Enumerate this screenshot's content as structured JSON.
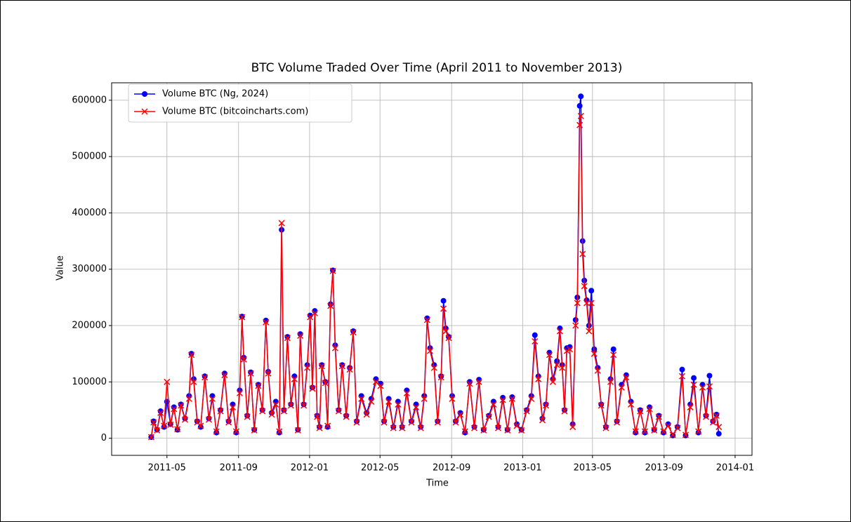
{
  "chart_data": {
    "type": "line",
    "title": "BTC Volume Traded Over Time (April 2011 to November 2013)",
    "x_label": "Time",
    "y_label": "Value",
    "x": [
      "2011-04-04",
      "2011-04-08",
      "2011-04-14",
      "2011-04-20",
      "2011-04-26",
      "2011-05-01",
      "2011-05-07",
      "2011-05-13",
      "2011-05-19",
      "2011-05-25",
      "2011-06-01",
      "2011-06-08",
      "2011-06-12",
      "2011-06-16",
      "2011-06-22",
      "2011-06-28",
      "2011-07-05",
      "2011-07-12",
      "2011-07-18",
      "2011-07-25",
      "2011-08-01",
      "2011-08-08",
      "2011-08-15",
      "2011-08-22",
      "2011-08-28",
      "2011-09-03",
      "2011-09-07",
      "2011-09-10",
      "2011-09-16",
      "2011-09-22",
      "2011-09-28",
      "2011-10-05",
      "2011-10-12",
      "2011-10-18",
      "2011-10-22",
      "2011-10-28",
      "2011-11-04",
      "2011-11-10",
      "2011-11-14",
      "2011-11-18",
      "2011-11-24",
      "2011-11-30",
      "2011-12-06",
      "2011-12-12",
      "2011-12-16",
      "2011-12-22",
      "2011-12-28",
      "2012-01-02",
      "2012-01-06",
      "2012-01-10",
      "2012-01-14",
      "2012-01-18",
      "2012-01-22",
      "2012-01-28",
      "2012-02-01",
      "2012-02-06",
      "2012-02-10",
      "2012-02-14",
      "2012-02-20",
      "2012-02-26",
      "2012-03-04",
      "2012-03-10",
      "2012-03-16",
      "2012-03-22",
      "2012-03-30",
      "2012-04-08",
      "2012-04-16",
      "2012-04-24",
      "2012-05-02",
      "2012-05-08",
      "2012-05-16",
      "2012-05-24",
      "2012-06-01",
      "2012-06-08",
      "2012-06-16",
      "2012-06-24",
      "2012-07-02",
      "2012-07-10",
      "2012-07-16",
      "2012-07-21",
      "2012-07-26",
      "2012-08-02",
      "2012-08-08",
      "2012-08-14",
      "2012-08-18",
      "2012-08-22",
      "2012-08-27",
      "2012-09-02",
      "2012-09-08",
      "2012-09-16",
      "2012-09-24",
      "2012-10-02",
      "2012-10-10",
      "2012-10-18",
      "2012-10-26",
      "2012-11-04",
      "2012-11-12",
      "2012-11-20",
      "2012-11-28",
      "2012-12-06",
      "2012-12-14",
      "2012-12-22",
      "2012-12-30",
      "2013-01-08",
      "2013-01-16",
      "2013-01-22",
      "2013-01-28",
      "2013-02-04",
      "2013-02-10",
      "2013-02-16",
      "2013-02-22",
      "2013-03-01",
      "2013-03-06",
      "2013-03-10",
      "2013-03-14",
      "2013-03-18",
      "2013-03-23",
      "2013-03-28",
      "2013-04-02",
      "2013-04-05",
      "2013-04-09",
      "2013-04-11",
      "2013-04-14",
      "2013-04-17",
      "2013-04-21",
      "2013-04-25",
      "2013-04-29",
      "2013-05-04",
      "2013-05-10",
      "2013-05-16",
      "2013-05-24",
      "2013-06-01",
      "2013-06-06",
      "2013-06-12",
      "2013-06-20",
      "2013-06-28",
      "2013-07-06",
      "2013-07-14",
      "2013-07-22",
      "2013-07-30",
      "2013-08-07",
      "2013-08-15",
      "2013-08-23",
      "2013-08-31",
      "2013-09-08",
      "2013-09-16",
      "2013-09-24",
      "2013-10-02",
      "2013-10-08",
      "2013-10-16",
      "2013-10-22",
      "2013-10-30",
      "2013-11-06",
      "2013-11-12",
      "2013-11-18",
      "2013-11-24",
      "2013-11-30",
      "2013-12-04"
    ],
    "series": [
      {
        "name": "Volume BTC (Ng, 2024)",
        "color": "#0000ff",
        "marker": "circle",
        "values": [
          2000,
          30000,
          15000,
          48000,
          20000,
          65000,
          25000,
          55000,
          15000,
          60000,
          35000,
          75000,
          150000,
          105000,
          30000,
          20000,
          110000,
          35000,
          75000,
          10000,
          50000,
          115000,
          30000,
          60000,
          10000,
          85000,
          216000,
          143000,
          40000,
          117000,
          15000,
          95000,
          50000,
          209000,
          118000,
          45000,
          65000,
          10000,
          370000,
          50000,
          180000,
          60000,
          110000,
          15000,
          185000,
          60000,
          130000,
          218000,
          90000,
          226000,
          40000,
          20000,
          130000,
          100000,
          20000,
          238000,
          298000,
          165000,
          50000,
          130000,
          40000,
          125000,
          190000,
          30000,
          75000,
          45000,
          70000,
          105000,
          97000,
          30000,
          70000,
          20000,
          65000,
          20000,
          85000,
          30000,
          60000,
          20000,
          75000,
          213000,
          160000,
          130000,
          30000,
          110000,
          244000,
          195000,
          180000,
          75000,
          30000,
          45000,
          10000,
          100000,
          20000,
          104000,
          15000,
          40000,
          65000,
          20000,
          72000,
          15000,
          73000,
          25000,
          15000,
          50000,
          75000,
          183000,
          110000,
          35000,
          60000,
          152000,
          105000,
          137000,
          195000,
          130000,
          50000,
          160000,
          162000,
          25000,
          210000,
          250000,
          590000,
          607000,
          350000,
          280000,
          245000,
          200000,
          262000,
          158000,
          125000,
          60000,
          20000,
          105000,
          158000,
          30000,
          95000,
          112000,
          65000,
          10000,
          50000,
          10000,
          55000,
          15000,
          40000,
          10000,
          25000,
          5000,
          20000,
          122000,
          5000,
          60000,
          107000,
          10000,
          95000,
          40000,
          111000,
          30000,
          42000,
          8000
        ]
      },
      {
        "name": "Volume BTC (bitcoincharts.com)",
        "color": "#ff0000",
        "marker": "x",
        "values": [
          2000,
          28000,
          14000,
          45000,
          22000,
          100000,
          24000,
          52000,
          16000,
          58000,
          33000,
          70000,
          148000,
          100000,
          28000,
          22000,
          108000,
          33000,
          70000,
          12000,
          48000,
          112000,
          28000,
          55000,
          12000,
          80000,
          215000,
          140000,
          38000,
          115000,
          14000,
          93000,
          48000,
          206000,
          115000,
          42000,
          60000,
          12000,
          382000,
          48000,
          178000,
          58000,
          105000,
          14000,
          182000,
          58000,
          125000,
          215000,
          88000,
          222000,
          38000,
          18000,
          128000,
          98000,
          22000,
          235000,
          297000,
          160000,
          48000,
          128000,
          38000,
          122000,
          188000,
          28000,
          70000,
          42000,
          65000,
          100000,
          93000,
          28000,
          65000,
          18000,
          60000,
          18000,
          80000,
          28000,
          55000,
          18000,
          70000,
          210000,
          155000,
          125000,
          28000,
          108000,
          230000,
          190000,
          178000,
          70000,
          28000,
          42000,
          12000,
          97000,
          18000,
          100000,
          14000,
          38000,
          60000,
          18000,
          68000,
          14000,
          70000,
          22000,
          14000,
          48000,
          70000,
          172000,
          105000,
          32000,
          58000,
          148000,
          100000,
          130000,
          190000,
          125000,
          48000,
          155000,
          158000,
          20000,
          200000,
          240000,
          556000,
          572000,
          327000,
          270000,
          240000,
          190000,
          240000,
          150000,
          120000,
          58000,
          18000,
          100000,
          148000,
          28000,
          90000,
          108000,
          60000,
          12000,
          48000,
          12000,
          52000,
          14000,
          38000,
          12000,
          22000,
          6000,
          18000,
          110000,
          6000,
          55000,
          95000,
          12000,
          90000,
          38000,
          92000,
          28000,
          40000,
          20000
        ]
      }
    ],
    "xlim": [
      "2011-01-26",
      "2014-01-30"
    ],
    "xticks": [
      "2011-05",
      "2011-09",
      "2012-01",
      "2012-05",
      "2012-09",
      "2013-01",
      "2013-05",
      "2013-09",
      "2014-01"
    ],
    "ylim": [
      -30400,
      631000
    ],
    "yticks": [
      0,
      100000,
      200000,
      300000,
      400000,
      500000,
      600000
    ],
    "grid": true,
    "legend": "upper left"
  }
}
